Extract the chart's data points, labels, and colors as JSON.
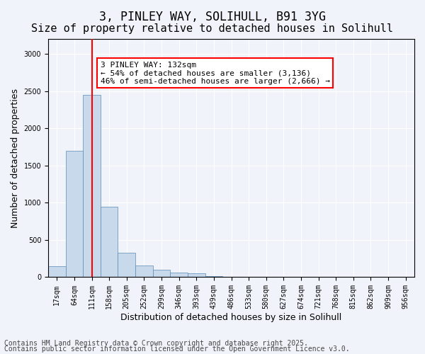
{
  "title_line1": "3, PINLEY WAY, SOLIHULL, B91 3YG",
  "title_line2": "Size of property relative to detached houses in Solihull",
  "xlabel": "Distribution of detached houses by size in Solihull",
  "ylabel": "Number of detached properties",
  "bar_color": "#c9d9ec",
  "bar_edge_color": "#5a8ab5",
  "vline_color": "red",
  "vline_x": 2,
  "categories": [
    "17sqm",
    "64sqm",
    "111sqm",
    "158sqm",
    "205sqm",
    "252sqm",
    "299sqm",
    "346sqm",
    "393sqm",
    "439sqm",
    "486sqm",
    "533sqm",
    "580sqm",
    "627sqm",
    "674sqm",
    "721sqm",
    "768sqm",
    "815sqm",
    "862sqm",
    "909sqm",
    "956sqm"
  ],
  "values": [
    150,
    1700,
    2450,
    950,
    330,
    160,
    100,
    65,
    55,
    10,
    5,
    2,
    1,
    0,
    0,
    0,
    0,
    0,
    0,
    0,
    0
  ],
  "ylim": [
    0,
    3200
  ],
  "yticks": [
    0,
    500,
    1000,
    1500,
    2000,
    2500,
    3000
  ],
  "annotation_text": "3 PINLEY WAY: 132sqm\n← 54% of detached houses are smaller (3,136)\n46% of semi-detached houses are larger (2,666) →",
  "annotation_box_color": "white",
  "annotation_box_edge_color": "red",
  "footer_line1": "Contains HM Land Registry data © Crown copyright and database right 2025.",
  "footer_line2": "Contains public sector information licensed under the Open Government Licence v3.0.",
  "background_color": "#f0f4fa",
  "grid_color": "white",
  "title_fontsize": 12,
  "subtitle_fontsize": 11,
  "axis_label_fontsize": 9,
  "tick_fontsize": 7,
  "annotation_fontsize": 8,
  "footer_fontsize": 7
}
